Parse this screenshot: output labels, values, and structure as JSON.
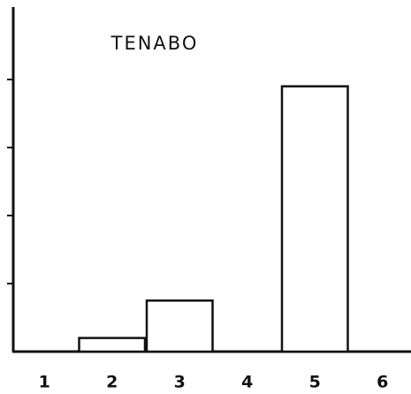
{
  "chart_data": {
    "type": "bar",
    "title": "TENABO",
    "categories": [
      "1",
      "2",
      "3",
      "4",
      "5",
      "6"
    ],
    "values": [
      0,
      0.2,
      0.75,
      0,
      3.9,
      0
    ],
    "color": "#ffffff",
    "ylim": [
      0,
      5
    ],
    "yticks": [
      1,
      2,
      3,
      4
    ],
    "grid": false
  }
}
